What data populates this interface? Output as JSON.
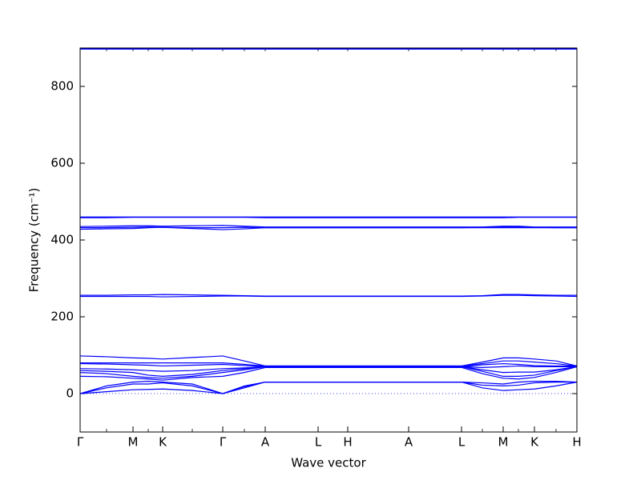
{
  "chart_data": {
    "type": "line",
    "xlabel": "Wave vector",
    "ylabel": "Frequency (cm⁻¹)",
    "color": "#0000ff",
    "x": [
      0,
      0.33,
      0.66,
      0.85,
      1.03,
      1.4,
      1.78,
      2.05,
      2.31,
      2.97,
      3.34,
      4.1,
      4.76,
      5.02,
      5.28,
      5.47,
      5.67,
      5.94,
      6.2
    ],
    "series": [
      {
        "values": [
          0,
          5,
          10,
          11,
          12,
          8,
          0,
          15,
          30,
          30,
          30,
          30,
          30,
          15,
          8,
          10,
          12,
          20,
          30
        ]
      },
      {
        "values": [
          0,
          15,
          25,
          25,
          28,
          20,
          0,
          18,
          30,
          30,
          30,
          30,
          30,
          22,
          20,
          22,
          28,
          30,
          30
        ]
      },
      {
        "values": [
          0,
          20,
          30,
          32,
          30,
          25,
          0,
          20,
          30,
          30,
          30,
          30,
          30,
          28,
          25,
          30,
          32,
          32,
          30
        ]
      },
      {
        "values": [
          45,
          44,
          40,
          38,
          35,
          42,
          45,
          55,
          68,
          68,
          68,
          68,
          68,
          52,
          40,
          38,
          42,
          55,
          70
        ]
      },
      {
        "values": [
          55,
          52,
          45,
          42,
          40,
          45,
          55,
          62,
          70,
          70,
          70,
          70,
          70,
          58,
          45,
          45,
          48,
          60,
          70
        ]
      },
      {
        "values": [
          60,
          58,
          55,
          48,
          45,
          50,
          60,
          65,
          70,
          70,
          70,
          70,
          70,
          62,
          55,
          56,
          56,
          62,
          70
        ]
      },
      {
        "values": [
          65,
          64,
          62,
          60,
          58,
          60,
          65,
          67,
          70,
          70,
          70,
          70,
          70,
          68,
          70,
          72,
          70,
          70,
          70
        ]
      },
      {
        "values": [
          78,
          77,
          75,
          74,
          72,
          74,
          76,
          73,
          70,
          70,
          70,
          70,
          70,
          75,
          78,
          76,
          73,
          72,
          72
        ]
      },
      {
        "values": [
          80,
          80,
          80,
          80,
          80,
          80,
          80,
          76,
          72,
          72,
          72,
          72,
          72,
          78,
          85,
          85,
          82,
          78,
          72
        ]
      },
      {
        "values": [
          98,
          96,
          93,
          92,
          90,
          94,
          98,
          85,
          72,
          72,
          72,
          72,
          72,
          82,
          93,
          93,
          90,
          85,
          72
        ]
      },
      {
        "values": [
          253,
          253,
          253,
          253,
          252,
          253,
          254,
          254,
          253,
          253,
          253,
          253,
          253,
          254,
          256,
          256,
          255,
          254,
          253
        ]
      },
      {
        "values": [
          256,
          256,
          257,
          257,
          258,
          257,
          256,
          255,
          254,
          254,
          254,
          254,
          254,
          255,
          258,
          258,
          257,
          256,
          256
        ]
      },
      {
        "values": [
          432,
          432,
          433,
          434,
          433,
          432,
          432,
          433,
          432,
          432,
          432,
          432,
          432,
          433,
          434,
          434,
          433,
          432,
          432
        ]
      },
      {
        "values": [
          435,
          436,
          437,
          437,
          436,
          437,
          438,
          436,
          434,
          434,
          434,
          434,
          434,
          434,
          436,
          436,
          434,
          434,
          434
        ]
      },
      {
        "values": [
          428,
          429,
          430,
          432,
          433,
          430,
          427,
          429,
          432,
          432,
          432,
          432,
          432,
          432,
          432,
          432,
          432,
          432,
          432
        ]
      },
      {
        "values": [
          458,
          458,
          459,
          459,
          459,
          459,
          459,
          459,
          458,
          458,
          458,
          458,
          458,
          458,
          458,
          459,
          459,
          459,
          459
        ]
      },
      {
        "values": [
          460,
          460,
          460,
          460,
          460,
          460,
          460,
          460,
          460,
          460,
          460,
          460,
          460,
          460,
          460,
          460,
          460,
          460,
          460
        ]
      },
      {
        "values": [
          897,
          897,
          897,
          897,
          897,
          897,
          897,
          897,
          897,
          897,
          897,
          897,
          897,
          897,
          897,
          897,
          897,
          897,
          897
        ]
      },
      {
        "values": [
          899,
          899,
          899,
          899,
          899,
          899,
          899,
          899,
          899,
          899,
          899,
          899,
          899,
          899,
          899,
          899,
          899,
          899,
          899
        ]
      }
    ],
    "xlim": [
      0,
      6.2
    ],
    "xticks": [
      {
        "value": 0,
        "label": "Γ"
      },
      {
        "value": 0.66,
        "label": "M"
      },
      {
        "value": 1.03,
        "label": "K"
      },
      {
        "value": 1.78,
        "label": "Γ"
      },
      {
        "value": 2.31,
        "label": "A"
      },
      {
        "value": 2.97,
        "label": "L"
      },
      {
        "value": 3.34,
        "label": "H"
      },
      {
        "value": 4.1,
        "label": "A"
      },
      {
        "value": 4.76,
        "label": "L"
      },
      {
        "value": 5.28,
        "label": "M"
      },
      {
        "value": 5.67,
        "label": "K"
      },
      {
        "value": 6.2,
        "label": "H"
      }
    ],
    "ylim": [
      -100,
      900
    ],
    "yticks": [
      0,
      200,
      400,
      600,
      800
    ]
  }
}
